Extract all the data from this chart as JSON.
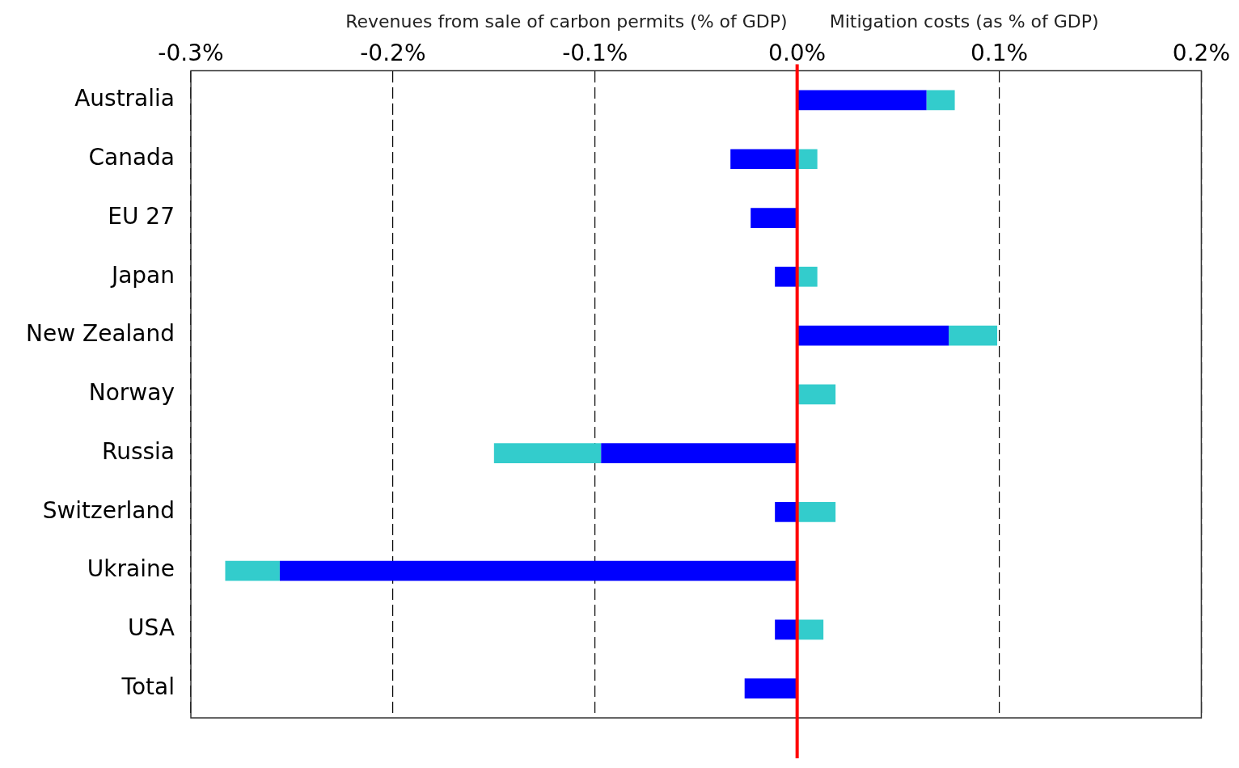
{
  "chart_data": {
    "type": "bar",
    "orientation": "horizontal",
    "stacked": true,
    "categories": [
      "Australia",
      "Canada",
      "EU 27",
      "Japan",
      "New Zealand",
      "Norway",
      "Russia",
      "Switzerland",
      "Ukraine",
      "USA",
      "Total"
    ],
    "series": [
      {
        "color": "#0000ff",
        "values": [
          0.064,
          -0.033,
          -0.023,
          -0.011,
          0.075,
          0,
          -0.097,
          -0.011,
          -0.256,
          -0.011,
          -0.026
        ]
      },
      {
        "color": "#33cccc",
        "values": [
          0.014,
          0.01,
          0,
          0.01,
          0.024,
          0.019,
          -0.053,
          0.019,
          -0.027,
          0.013,
          0
        ]
      }
    ],
    "xlim": [
      -0.3,
      0.2
    ],
    "xticks": [
      {
        "value": -0.3,
        "label": "-0.3%"
      },
      {
        "value": -0.2,
        "label": "-0.2%"
      },
      {
        "value": -0.1,
        "label": "-0.1%"
      },
      {
        "value": 0,
        "label": "0.0%"
      },
      {
        "value": 0.1,
        "label": "0.1%"
      },
      {
        "value": 0.2,
        "label": "0.2%"
      }
    ],
    "grid": "x",
    "legend": false,
    "ref_lines": [
      {
        "axis": "x",
        "value": 0,
        "color": "#ff0000"
      }
    ],
    "annotations": [
      "Revenues from sale of carbon permits (% of GDP)",
      "Mitigation costs (as % of GDP)"
    ]
  }
}
